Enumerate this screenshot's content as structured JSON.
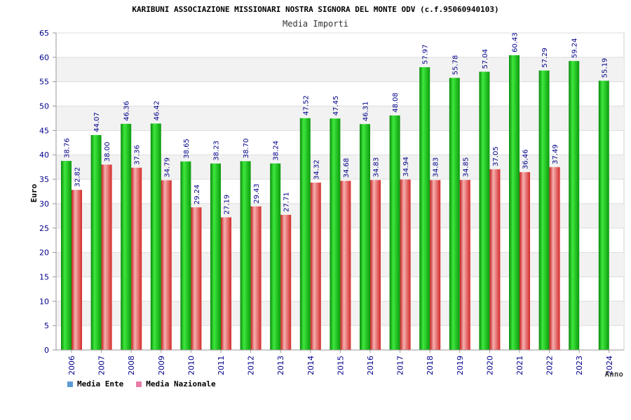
{
  "chart_data": {
    "type": "bar",
    "title": "KARIBUNI ASSOCIAZIONE MISSIONARI NOSTRA SIGNORA DEL MONTE ODV (c.f.95060940103)",
    "subtitle": "Media Importi",
    "ylabel": "Euro",
    "xlabel": "Anno",
    "ylim": [
      0,
      65
    ],
    "yticks": [
      0,
      5,
      10,
      15,
      20,
      25,
      30,
      35,
      40,
      45,
      50,
      55,
      60,
      65
    ],
    "categories": [
      "2006",
      "2007",
      "2008",
      "2009",
      "2010",
      "2011",
      "2012",
      "2013",
      "2014",
      "2015",
      "2016",
      "2017",
      "2018",
      "2019",
      "2020",
      "2021",
      "2022",
      "2023",
      "2024"
    ],
    "series": [
      {
        "name": "Media Ente",
        "legend_color": "#5b9bd5",
        "bar_color": "#1db81d",
        "values": [
          38.76,
          44.07,
          46.36,
          46.42,
          38.65,
          38.23,
          38.7,
          38.24,
          47.52,
          47.45,
          46.31,
          48.08,
          57.97,
          55.78,
          57.04,
          60.43,
          57.29,
          59.24,
          55.19
        ],
        "labels": [
          "38.76",
          "44.07",
          "46.36",
          "46.42",
          "38.65",
          "38.23",
          "38.70",
          "38.24",
          "47.52",
          "47.45",
          "46.31",
          "48.08",
          "57.97",
          "55.78",
          "57.04",
          "60.43",
          "57.29",
          "59.24",
          "55.19"
        ]
      },
      {
        "name": "Media Nazionale",
        "legend_color": "#e87ca8",
        "bar_color": "#e03838",
        "values": [
          32.82,
          38.0,
          37.36,
          34.79,
          29.24,
          27.19,
          29.43,
          27.71,
          34.32,
          34.68,
          34.83,
          34.94,
          34.83,
          34.85,
          37.05,
          36.46,
          37.49,
          null,
          null
        ],
        "labels": [
          "32.82",
          "38.00",
          "37.36",
          "34.79",
          "29.24",
          "27.19",
          "29.43",
          "27.71",
          "34.32",
          "34.68",
          "34.83",
          "34.94",
          "34.83",
          "34.85",
          "37.05",
          "36.46",
          "37.49",
          null,
          null
        ]
      }
    ],
    "grid": true,
    "legend": "bottom-left",
    "colors": {
      "axis_text": "#00008b",
      "value_label": "#00008b",
      "band": "#f2f2f2",
      "grid": "#dddddd"
    }
  }
}
